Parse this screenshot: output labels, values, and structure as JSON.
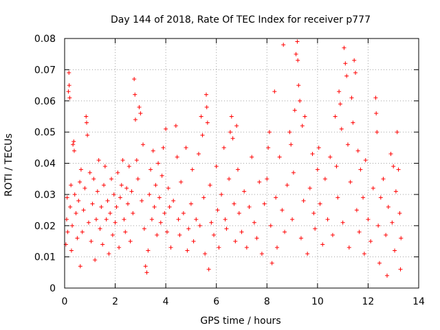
{
  "chart_data": {
    "type": "scatter",
    "title": "Day 144 of 2018, Rate Of TEC Index for receiver p777",
    "xlabel": "GPS time / hours",
    "ylabel": "ROTI / TECUs",
    "xlim": [
      0,
      14
    ],
    "ylim": [
      0,
      0.08
    ],
    "xticks": [
      "0",
      "2",
      "4",
      "6",
      "8",
      "10",
      "12",
      "14"
    ],
    "yticks": [
      "0",
      "0.01",
      "0.02",
      "0.03",
      "0.04",
      "0.05",
      "0.06",
      "0.07",
      "0.08"
    ],
    "grid": true,
    "marker": "+",
    "color": "#ff0000",
    "series": [
      {
        "name": "ROTI",
        "points": [
          [
            0.05,
            0.014
          ],
          [
            0.08,
            0.022
          ],
          [
            0.1,
            0.029
          ],
          [
            0.12,
            0.018
          ],
          [
            0.15,
            0.063
          ],
          [
            0.17,
            0.069
          ],
          [
            0.18,
            0.065
          ],
          [
            0.2,
            0.061
          ],
          [
            0.22,
            0.026
          ],
          [
            0.25,
            0.033
          ],
          [
            0.27,
            0.012
          ],
          [
            0.3,
            0.02
          ],
          [
            0.33,
            0.046
          ],
          [
            0.36,
            0.047
          ],
          [
            0.38,
            0.044
          ],
          [
            0.4,
            0.03
          ],
          [
            0.45,
            0.024
          ],
          [
            0.5,
            0.016
          ],
          [
            0.55,
            0.028
          ],
          [
            0.6,
            0.034
          ],
          [
            0.62,
            0.007
          ],
          [
            0.65,
            0.038
          ],
          [
            0.7,
            0.018
          ],
          [
            0.75,
            0.025
          ],
          [
            0.8,
            0.032
          ],
          [
            0.85,
            0.055
          ],
          [
            0.87,
            0.053
          ],
          [
            0.9,
            0.049
          ],
          [
            0.95,
            0.021
          ],
          [
            1.0,
            0.037
          ],
          [
            1.05,
            0.015
          ],
          [
            1.1,
            0.027
          ],
          [
            1.15,
            0.035
          ],
          [
            1.2,
            0.009
          ],
          [
            1.25,
            0.022
          ],
          [
            1.3,
            0.031
          ],
          [
            1.35,
            0.041
          ],
          [
            1.4,
            0.019
          ],
          [
            1.45,
            0.026
          ],
          [
            1.5,
            0.014
          ],
          [
            1.55,
            0.033
          ],
          [
            1.6,
            0.039
          ],
          [
            1.65,
            0.022
          ],
          [
            1.7,
            0.028
          ],
          [
            1.75,
            0.011
          ],
          [
            1.8,
            0.024
          ],
          [
            1.85,
            0.035
          ],
          [
            1.9,
            0.017
          ],
          [
            1.95,
            0.03
          ],
          [
            2.0,
            0.021
          ],
          [
            2.05,
            0.026
          ],
          [
            2.1,
            0.037
          ],
          [
            2.15,
            0.013
          ],
          [
            2.2,
            0.029
          ],
          [
            2.25,
            0.033
          ],
          [
            2.3,
            0.041
          ],
          [
            2.35,
            0.022
          ],
          [
            2.4,
            0.018
          ],
          [
            2.45,
            0.032
          ],
          [
            2.5,
            0.027
          ],
          [
            2.55,
            0.039
          ],
          [
            2.6,
            0.015
          ],
          [
            2.65,
            0.031
          ],
          [
            2.7,
            0.024
          ],
          [
            2.75,
            0.067
          ],
          [
            2.78,
            0.062
          ],
          [
            2.8,
            0.054
          ],
          [
            2.85,
            0.041
          ],
          [
            2.9,
            0.035
          ],
          [
            2.95,
            0.058
          ],
          [
            3.0,
            0.056
          ],
          [
            3.05,
            0.028
          ],
          [
            3.1,
            0.046
          ],
          [
            3.15,
            0.019
          ],
          [
            3.2,
            0.007
          ],
          [
            3.25,
            0.005
          ],
          [
            3.3,
            0.012
          ],
          [
            3.35,
            0.03
          ],
          [
            3.4,
            0.038
          ],
          [
            3.45,
            0.022
          ],
          [
            3.5,
            0.044
          ],
          [
            3.55,
            0.026
          ],
          [
            3.6,
            0.033
          ],
          [
            3.65,
            0.017
          ],
          [
            3.7,
            0.04
          ],
          [
            3.75,
            0.029
          ],
          [
            3.8,
            0.021
          ],
          [
            3.85,
            0.036
          ],
          [
            3.9,
            0.045
          ],
          [
            3.95,
            0.024
          ],
          [
            4.0,
            0.051
          ],
          [
            4.05,
            0.018
          ],
          [
            4.1,
            0.032
          ],
          [
            4.15,
            0.026
          ],
          [
            4.2,
            0.013
          ],
          [
            4.3,
            0.028
          ],
          [
            4.4,
            0.052
          ],
          [
            4.45,
            0.042
          ],
          [
            4.5,
            0.022
          ],
          [
            4.55,
            0.017
          ],
          [
            4.6,
            0.034
          ],
          [
            4.7,
            0.024
          ],
          [
            4.8,
            0.045
          ],
          [
            4.85,
            0.012
          ],
          [
            4.9,
            0.019
          ],
          [
            5.0,
            0.027
          ],
          [
            5.05,
            0.038
          ],
          [
            5.1,
            0.015
          ],
          [
            5.2,
            0.022
          ],
          [
            5.3,
            0.043
          ],
          [
            5.35,
            0.02
          ],
          [
            5.4,
            0.055
          ],
          [
            5.45,
            0.049
          ],
          [
            5.5,
            0.029
          ],
          [
            5.55,
            0.011
          ],
          [
            5.6,
            0.062
          ],
          [
            5.62,
            0.058
          ],
          [
            5.65,
            0.053
          ],
          [
            5.7,
            0.006
          ],
          [
            5.75,
            0.033
          ],
          [
            5.8,
            0.021
          ],
          [
            5.9,
            0.017
          ],
          [
            6.0,
            0.039
          ],
          [
            6.05,
            0.025
          ],
          [
            6.1,
            0.013
          ],
          [
            6.2,
            0.03
          ],
          [
            6.3,
            0.045
          ],
          [
            6.35,
            0.022
          ],
          [
            6.4,
            0.019
          ],
          [
            6.5,
            0.035
          ],
          [
            6.55,
            0.05
          ],
          [
            6.6,
            0.055
          ],
          [
            6.65,
            0.048
          ],
          [
            6.7,
            0.027
          ],
          [
            6.75,
            0.015
          ],
          [
            6.8,
            0.052
          ],
          [
            6.85,
            0.038
          ],
          [
            6.9,
            0.024
          ],
          [
            7.0,
            0.018
          ],
          [
            7.1,
            0.031
          ],
          [
            7.2,
            0.013
          ],
          [
            7.3,
            0.026
          ],
          [
            7.4,
            0.042
          ],
          [
            7.5,
            0.021
          ],
          [
            7.6,
            0.016
          ],
          [
            7.7,
            0.034
          ],
          [
            7.8,
            0.011
          ],
          [
            7.9,
            0.027
          ],
          [
            8.0,
            0.035
          ],
          [
            8.05,
            0.045
          ],
          [
            8.1,
            0.05
          ],
          [
            8.15,
            0.02
          ],
          [
            8.2,
            0.008
          ],
          [
            8.3,
            0.063
          ],
          [
            8.35,
            0.029
          ],
          [
            8.4,
            0.013
          ],
          [
            8.5,
            0.042
          ],
          [
            8.6,
            0.025
          ],
          [
            8.65,
            0.078
          ],
          [
            8.7,
            0.018
          ],
          [
            8.8,
            0.033
          ],
          [
            8.9,
            0.05
          ],
          [
            8.95,
            0.046
          ],
          [
            9.0,
            0.022
          ],
          [
            9.05,
            0.037
          ],
          [
            9.1,
            0.057
          ],
          [
            9.15,
            0.075
          ],
          [
            9.2,
            0.079
          ],
          [
            9.22,
            0.073
          ],
          [
            9.25,
            0.065
          ],
          [
            9.3,
            0.06
          ],
          [
            9.35,
            0.016
          ],
          [
            9.4,
            0.052
          ],
          [
            9.45,
            0.028
          ],
          [
            9.5,
            0.055
          ],
          [
            9.6,
            0.011
          ],
          [
            9.7,
            0.032
          ],
          [
            9.8,
            0.043
          ],
          [
            9.85,
            0.024
          ],
          [
            9.9,
            0.019
          ],
          [
            10.0,
            0.038
          ],
          [
            10.05,
            0.045
          ],
          [
            10.1,
            0.027
          ],
          [
            10.2,
            0.014
          ],
          [
            10.3,
            0.035
          ],
          [
            10.4,
            0.022
          ],
          [
            10.5,
            0.042
          ],
          [
            10.6,
            0.017
          ],
          [
            10.7,
            0.055
          ],
          [
            10.75,
            0.039
          ],
          [
            10.8,
            0.029
          ],
          [
            10.85,
            0.063
          ],
          [
            10.9,
            0.059
          ],
          [
            10.95,
            0.051
          ],
          [
            11.0,
            0.021
          ],
          [
            11.05,
            0.077
          ],
          [
            11.1,
            0.072
          ],
          [
            11.15,
            0.068
          ],
          [
            11.2,
            0.046
          ],
          [
            11.25,
            0.013
          ],
          [
            11.3,
            0.034
          ],
          [
            11.35,
            0.061
          ],
          [
            11.4,
            0.053
          ],
          [
            11.45,
            0.073
          ],
          [
            11.5,
            0.069
          ],
          [
            11.55,
            0.025
          ],
          [
            11.6,
            0.044
          ],
          [
            11.65,
            0.018
          ],
          [
            11.7,
            0.038
          ],
          [
            11.8,
            0.029
          ],
          [
            11.85,
            0.011
          ],
          [
            11.9,
            0.041
          ],
          [
            12.0,
            0.022
          ],
          [
            12.1,
            0.015
          ],
          [
            12.2,
            0.032
          ],
          [
            12.3,
            0.061
          ],
          [
            12.32,
            0.056
          ],
          [
            12.35,
            0.05
          ],
          [
            12.4,
            0.02
          ],
          [
            12.45,
            0.008
          ],
          [
            12.5,
            0.029
          ],
          [
            12.6,
            0.035
          ],
          [
            12.7,
            0.017
          ],
          [
            12.75,
            0.004
          ],
          [
            12.8,
            0.026
          ],
          [
            12.9,
            0.043
          ],
          [
            12.95,
            0.021
          ],
          [
            13.0,
            0.039
          ],
          [
            13.05,
            0.012
          ],
          [
            13.1,
            0.031
          ],
          [
            13.15,
            0.05
          ],
          [
            13.2,
            0.038
          ],
          [
            13.25,
            0.024
          ],
          [
            13.28,
            0.006
          ],
          [
            13.3,
            0.016
          ]
        ]
      }
    ]
  }
}
